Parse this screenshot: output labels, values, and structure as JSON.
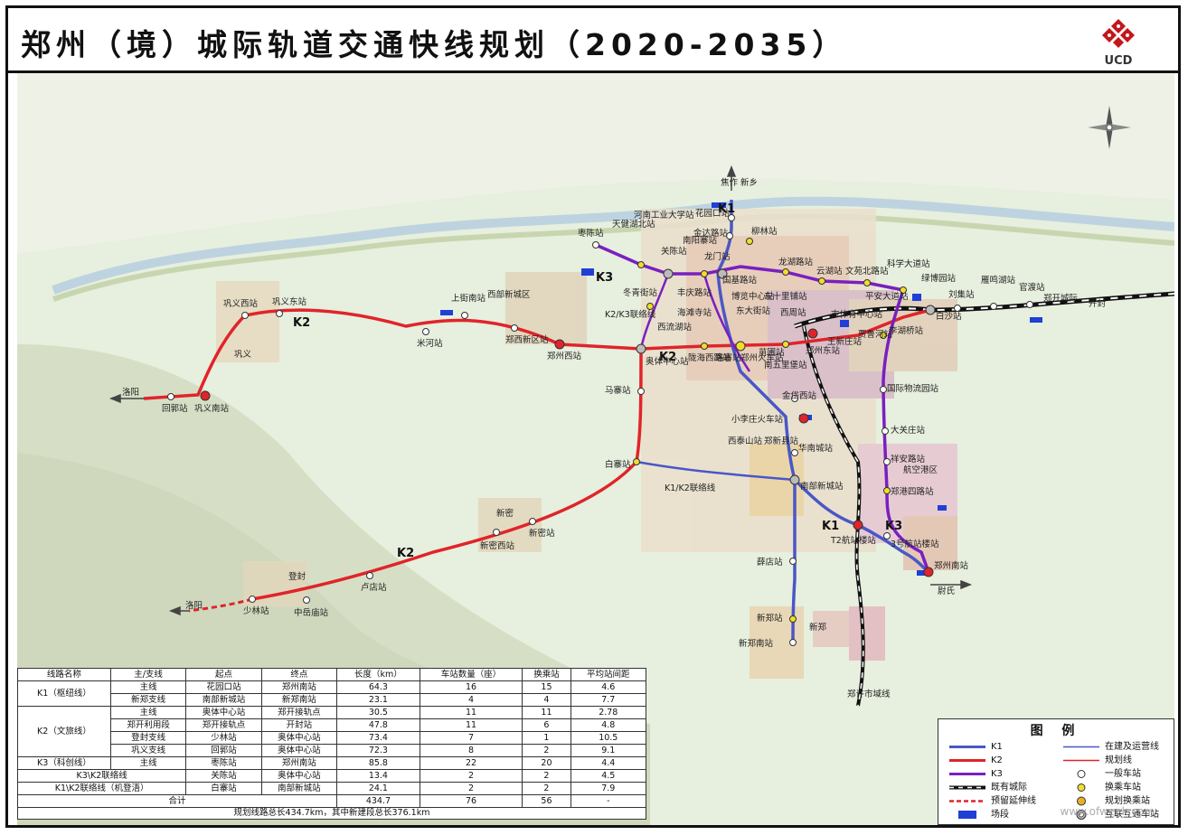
{
  "title": "郑州（境）城际轨道交通快线规划（2020-2035）",
  "logo_text": "UCD",
  "map": {
    "line_labels": {
      "k1_a": "K1",
      "k1_b": "K1",
      "k2_a": "K2",
      "k2_b": "K2",
      "k2_c": "K2",
      "k3_a": "K3",
      "k3_b": "K3"
    },
    "directions": {
      "luoyang_w": "洛阳",
      "luoyang_sw": "洛阳",
      "jiaozuo_xinxiang": "焦作 新乡",
      "kaifeng": "开封",
      "weishi": "尉氏",
      "zhengkai_line": "郑开城际"
    },
    "stations": {
      "huayuankou": "花园口站",
      "jinda": "金达路站",
      "liulin": "柳林站",
      "longhu": "龙湖路站",
      "yunhu": "云湖站",
      "wenyuanbei": "文苑北路站",
      "kexue": "科学大道站",
      "pinganda": "平安大道站",
      "baisha": "白沙站",
      "lvbo": "绿博园站",
      "liuji": "刘集站",
      "yanming": "雁鸣湖站",
      "guandu": "官渡站",
      "zaochen": "枣陈站",
      "tianjian": "天健湖北站",
      "henangongda": "河南工业大学站",
      "guanchen": "关陈站",
      "nanyang": "南阳寨站",
      "longmen": "龙门站",
      "guoji": "国基路站",
      "dongqing": "冬青街站",
      "fengqing": "丰庆路站",
      "k2k3": "K2/K3联络线",
      "xiliuhu": "西流湖站",
      "haitansi": "海滩寺站",
      "bolan": "博览中心站",
      "dongda": "东大街站",
      "dongshi": "东十里铺站",
      "xizhou": "西周站",
      "zhengzhoudong": "郑州东站",
      "shitiyu": "市体育中心站",
      "wangxin": "王新庄站",
      "jialuhe": "贾鲁河站",
      "lihuqiao": "李湖桥站",
      "aotizhongxin": "奥体中心站",
      "longhaixilu": "陇海西路站",
      "lujie": "路寨站",
      "zhengzhouhuoche": "郑州火车站",
      "mingmen": "苗圃站",
      "nanwuli": "南五里堡站",
      "jindai": "金岱西站",
      "xiaoli": "小李庄火车站",
      "guojiwuliu": "国际物流园站",
      "daguanzhuang": "大关庄站",
      "xiangan": "祥安路站",
      "zhenggang": "郑港四路站",
      "xitaishan": "西泰山站",
      "zhengxinxian": "郑新县站",
      "huanancheng": "华南城站",
      "nanbuxincheng": "南部新城站",
      "k1k2": "K1/K2联络线",
      "baizhai": "白寨站",
      "mazhai": "马寨站",
      "zhengzhouxi": "郑州西站",
      "zhengxixin": "郑西新区站",
      "shangjienan": "上街南站",
      "mihe": "米河站",
      "gongyixi": "巩义西站",
      "gongyidong": "巩义东站",
      "huiguo": "回郭站",
      "gongyinan": "巩义南站",
      "xinmixi": "新密西站",
      "xinmi": "新密站",
      "shaolin": "少林站",
      "zhongyuemiao": "中岳庙站",
      "ludian": "卢店站",
      "xuedian": "薛店站",
      "xinzheng": "新郑站",
      "xinzhengnan": "新郑南站",
      "t2": "T2航站楼站",
      "hangzhan3": "3号航站楼站",
      "zhengzhounan": "郑州南站",
      "zhengxu": "郑许市域线"
    },
    "places": {
      "gongyi": "巩义",
      "xinmi_city": "新密",
      "dengfeng": "登封",
      "xinzheng_city": "新郑",
      "shangjie": "西部新城区",
      "airport_area": "航空港区"
    }
  },
  "table": {
    "headers": [
      "线路名称",
      "主/支线",
      "起点",
      "终点",
      "长度（km）",
      "车站数量（座）",
      "换乘站",
      "平均站间距"
    ],
    "groups": [
      {
        "name": "K1（枢纽线）",
        "rows": [
          [
            "主线",
            "花园口站",
            "郑州南站",
            "64.3",
            "16",
            "15",
            "4.6"
          ],
          [
            "新郑支线",
            "南部新城站",
            "新郑南站",
            "23.1",
            "4",
            "4",
            "7.7"
          ]
        ]
      },
      {
        "name": "K2（文旅线）",
        "rows": [
          [
            "主线",
            "奥体中心站",
            "郑开接轨点",
            "30.5",
            "11",
            "11",
            "2.78"
          ],
          [
            "郑开利用段",
            "郑开接轨点",
            "开封站",
            "47.8",
            "11",
            "6",
            "4.8"
          ],
          [
            "登封支线",
            "少林站",
            "奥体中心站",
            "73.4",
            "7",
            "1",
            "10.5"
          ],
          [
            "巩义支线",
            "回郭站",
            "奥体中心站",
            "72.3",
            "8",
            "2",
            "9.1"
          ]
        ]
      },
      {
        "name": "K3（科创线）",
        "rows": [
          [
            "主线",
            "枣陈站",
            "郑州南站",
            "85.8",
            "22",
            "20",
            "4.4"
          ]
        ]
      },
      {
        "name": "K3\\K2联络线",
        "rows": [
          [
            "",
            "关陈站",
            "奥体中心站",
            "13.4",
            "2",
            "2",
            "4.5"
          ]
        ]
      },
      {
        "name": "K1\\K2联络线（机登浯）",
        "rows": [
          [
            "",
            "白寨站",
            "南部新城站",
            "24.1",
            "2",
            "2",
            "7.9"
          ]
        ]
      }
    ],
    "total": [
      "合计",
      "434.7",
      "76",
      "56",
      "-"
    ],
    "note": "规划线路总长434.7km，其中新建段总长376.1km"
  },
  "legend": {
    "title": "图 例",
    "items": {
      "k1": "K1",
      "k2": "K2",
      "k3": "K3",
      "existing": "既有城际",
      "reserved": "预留延伸线",
      "depot": "场段",
      "operating": "在建及运营线",
      "planned": "规划线",
      "general": "一般车站",
      "transfer": "换乘车站",
      "planned_transfer": "规划换乘站",
      "interconnect": "互联互通车站"
    }
  },
  "colors": {
    "k1": "#4a57c6",
    "k2": "#e0242a",
    "k3": "#7a1fbf",
    "existing": "#111111",
    "depot": "#1f3fd6"
  },
  "watermark": "www.ofweek.com"
}
